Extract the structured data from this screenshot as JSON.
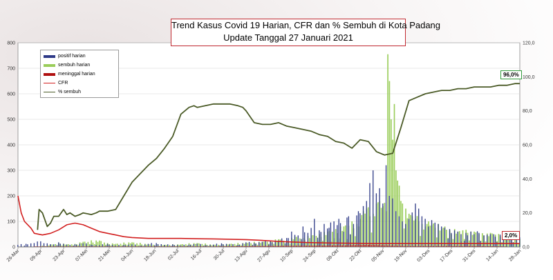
{
  "title": {
    "line1": "Trend Kasus Covid 19 Harian, CFR dan % Sembuh di Kota Padang",
    "line2": "Update Tanggal 27 Januari 2021"
  },
  "badges": {
    "recovery_last": "96,0%",
    "cfr_last": "2,0%"
  },
  "colors": {
    "positif": "#2e3a87",
    "sembuh": "#9acd5a",
    "meninggal": "#b01010",
    "cfr": "#d21f1f",
    "pct_sembuh": "#4a5a26"
  },
  "chart_data": {
    "type": "bar",
    "xlabels": [
      "26-Mar",
      "09-Apr",
      "23-Apr",
      "07-Mei",
      "21-Mei",
      "04-Jun",
      "18-Jun",
      "02-Jul",
      "16-Jul",
      "30-Jul",
      "13-Agu",
      "27-Agu",
      "10-Sep",
      "24-Sep",
      "08-Okt",
      "22-Okt",
      "05-Nov",
      "19-Nov",
      "03-Des",
      "17-Des",
      "31-Des",
      "14-Jan",
      "28-Jan"
    ],
    "ylim_left": [
      0,
      800
    ],
    "yticks_left": [
      "0",
      "100",
      "200",
      "300",
      "400",
      "500",
      "600",
      "700",
      "800"
    ],
    "ylim_right": [
      0,
      120
    ],
    "yticks_right": [
      "0,0",
      "20,0",
      "40,0",
      "60,0",
      "80,0",
      "100,0",
      "120,0"
    ],
    "legend": [
      {
        "name": "positif harian",
        "kind": "bar"
      },
      {
        "name": "sembuh harian",
        "kind": "bar"
      },
      {
        "name": "meninggal harian",
        "kind": "bar"
      },
      {
        "name": "CFR",
        "kind": "line"
      },
      {
        "name": "% sembuh",
        "kind": "line"
      }
    ],
    "series": [
      {
        "name": "positif harian",
        "points": [
          [
            0,
            8
          ],
          [
            5,
            12
          ],
          [
            10,
            15
          ],
          [
            14,
            22
          ],
          [
            18,
            14
          ],
          [
            22,
            10
          ],
          [
            25,
            18
          ],
          [
            28,
            12
          ],
          [
            32,
            8
          ],
          [
            35,
            10
          ],
          [
            40,
            14
          ],
          [
            45,
            9
          ],
          [
            50,
            7
          ],
          [
            55,
            12
          ],
          [
            60,
            6
          ],
          [
            65,
            8
          ],
          [
            70,
            10
          ],
          [
            75,
            5
          ],
          [
            80,
            12
          ],
          [
            85,
            15
          ],
          [
            90,
            8
          ],
          [
            95,
            10
          ],
          [
            100,
            6
          ],
          [
            105,
            9
          ],
          [
            110,
            12
          ],
          [
            115,
            7
          ],
          [
            120,
            9
          ],
          [
            125,
            14
          ],
          [
            130,
            10
          ],
          [
            135,
            8
          ],
          [
            140,
            18
          ],
          [
            145,
            15
          ],
          [
            150,
            20
          ],
          [
            155,
            22
          ],
          [
            160,
            25
          ],
          [
            165,
            35
          ],
          [
            168,
            60
          ],
          [
            172,
            45
          ],
          [
            175,
            80
          ],
          [
            178,
            55
          ],
          [
            182,
            110
          ],
          [
            185,
            65
          ],
          [
            188,
            90
          ],
          [
            191,
            75
          ],
          [
            194,
            100
          ],
          [
            197,
            110
          ],
          [
            200,
            60
          ],
          [
            203,
            120
          ],
          [
            206,
            90
          ],
          [
            209,
            140
          ],
          [
            212,
            160
          ],
          [
            214,
            180
          ],
          [
            216,
            250
          ],
          [
            218,
            300
          ],
          [
            220,
            210
          ],
          [
            222,
            230
          ],
          [
            224,
            170
          ],
          [
            226,
            320
          ],
          [
            228,
            200
          ],
          [
            230,
            190
          ],
          [
            232,
            140
          ],
          [
            234,
            120
          ],
          [
            236,
            100
          ],
          [
            238,
            90
          ],
          [
            240,
            110
          ],
          [
            242,
            135
          ],
          [
            244,
            170
          ],
          [
            246,
            150
          ],
          [
            248,
            120
          ],
          [
            250,
            110
          ],
          [
            252,
            80
          ],
          [
            254,
            105
          ],
          [
            256,
            95
          ],
          [
            258,
            90
          ],
          [
            260,
            80
          ],
          [
            262,
            75
          ],
          [
            265,
            70
          ],
          [
            268,
            65
          ],
          [
            270,
            60
          ],
          [
            272,
            50
          ],
          [
            275,
            55
          ],
          [
            278,
            60
          ],
          [
            280,
            50
          ],
          [
            283,
            55
          ],
          [
            286,
            45
          ],
          [
            290,
            50
          ],
          [
            293,
            40
          ],
          [
            296,
            48
          ],
          [
            300,
            45
          ],
          [
            303,
            40
          ],
          [
            306,
            42
          ],
          [
            308,
            38
          ]
        ]
      },
      {
        "name": "sembuh harian",
        "points": [
          [
            15,
            5
          ],
          [
            20,
            8
          ],
          [
            25,
            15
          ],
          [
            30,
            10
          ],
          [
            35,
            12
          ],
          [
            40,
            20
          ],
          [
            50,
            25
          ],
          [
            55,
            15
          ],
          [
            60,
            12
          ],
          [
            70,
            18
          ],
          [
            80,
            10
          ],
          [
            90,
            8
          ],
          [
            100,
            10
          ],
          [
            110,
            15
          ],
          [
            120,
            8
          ],
          [
            130,
            12
          ],
          [
            140,
            15
          ],
          [
            150,
            20
          ],
          [
            155,
            25
          ],
          [
            160,
            30
          ],
          [
            165,
            25
          ],
          [
            170,
            40
          ],
          [
            175,
            35
          ],
          [
            180,
            45
          ],
          [
            185,
            50
          ],
          [
            190,
            60
          ],
          [
            195,
            70
          ],
          [
            200,
            80
          ],
          [
            205,
            100
          ],
          [
            208,
            90
          ],
          [
            210,
            110
          ],
          [
            212,
            140
          ],
          [
            214,
            150
          ],
          [
            216,
            120
          ],
          [
            218,
            130
          ],
          [
            220,
            170
          ],
          [
            222,
            180
          ],
          [
            224,
            160
          ],
          [
            226,
            140
          ],
          [
            227,
            755
          ],
          [
            228,
            650
          ],
          [
            229,
            500
          ],
          [
            230,
            420
          ],
          [
            231,
            560
          ],
          [
            232,
            300
          ],
          [
            233,
            260
          ],
          [
            234,
            240
          ],
          [
            235,
            180
          ],
          [
            236,
            170
          ],
          [
            238,
            150
          ],
          [
            240,
            130
          ],
          [
            242,
            120
          ],
          [
            244,
            110
          ],
          [
            246,
            100
          ],
          [
            248,
            90
          ],
          [
            250,
            80
          ],
          [
            252,
            100
          ],
          [
            254,
            85
          ],
          [
            256,
            75
          ],
          [
            258,
            90
          ],
          [
            260,
            70
          ],
          [
            262,
            80
          ],
          [
            265,
            65
          ],
          [
            268,
            70
          ],
          [
            270,
            60
          ],
          [
            273,
            65
          ],
          [
            276,
            55
          ],
          [
            280,
            60
          ],
          [
            283,
            50
          ],
          [
            286,
            45
          ],
          [
            290,
            55
          ],
          [
            293,
            48
          ],
          [
            296,
            42
          ],
          [
            300,
            40
          ],
          [
            303,
            38
          ],
          [
            306,
            35
          ],
          [
            308,
            32
          ]
        ]
      },
      {
        "name": "meninggal harian",
        "points": [
          [
            10,
            1
          ],
          [
            40,
            1
          ],
          [
            80,
            1
          ],
          [
            120,
            1
          ],
          [
            160,
            2
          ],
          [
            200,
            3
          ],
          [
            215,
            4
          ],
          [
            225,
            3
          ],
          [
            240,
            2
          ],
          [
            260,
            2
          ],
          [
            280,
            2
          ],
          [
            300,
            1
          ]
        ]
      },
      {
        "name": "CFR",
        "points": [
          [
            0,
            30
          ],
          [
            2,
            20
          ],
          [
            4,
            15
          ],
          [
            8,
            11
          ],
          [
            10,
            8
          ],
          [
            15,
            7
          ],
          [
            20,
            8
          ],
          [
            25,
            10
          ],
          [
            30,
            13
          ],
          [
            35,
            14
          ],
          [
            40,
            13
          ],
          [
            45,
            11
          ],
          [
            50,
            9
          ],
          [
            55,
            8
          ],
          [
            60,
            7
          ],
          [
            65,
            6
          ],
          [
            70,
            5.5
          ],
          [
            80,
            5
          ],
          [
            90,
            5
          ],
          [
            100,
            5
          ],
          [
            110,
            4.8
          ],
          [
            120,
            4.7
          ],
          [
            130,
            4.5
          ],
          [
            140,
            4.3
          ],
          [
            150,
            3.8
          ],
          [
            160,
            3.2
          ],
          [
            170,
            2.8
          ],
          [
            180,
            2.5
          ],
          [
            190,
            2.3
          ],
          [
            200,
            2.2
          ],
          [
            210,
            2.1
          ],
          [
            220,
            2
          ],
          [
            230,
            2
          ],
          [
            240,
            2
          ],
          [
            250,
            2
          ],
          [
            260,
            2
          ],
          [
            270,
            2
          ],
          [
            280,
            2
          ],
          [
            290,
            2
          ],
          [
            300,
            2
          ],
          [
            308,
            2
          ]
        ]
      },
      {
        "name": "% sembuh",
        "points": [
          [
            12,
            10
          ],
          [
            13,
            22
          ],
          [
            15,
            20
          ],
          [
            18,
            12
          ],
          [
            20,
            14
          ],
          [
            22,
            18
          ],
          [
            25,
            18
          ],
          [
            28,
            22
          ],
          [
            30,
            19
          ],
          [
            32,
            20
          ],
          [
            35,
            18
          ],
          [
            38,
            19
          ],
          [
            40,
            20
          ],
          [
            45,
            19
          ],
          [
            48,
            20
          ],
          [
            50,
            21
          ],
          [
            55,
            21
          ],
          [
            60,
            22
          ],
          [
            65,
            30
          ],
          [
            70,
            38
          ],
          [
            75,
            43
          ],
          [
            80,
            48
          ],
          [
            85,
            52
          ],
          [
            90,
            58
          ],
          [
            95,
            65
          ],
          [
            100,
            78
          ],
          [
            105,
            82
          ],
          [
            108,
            83
          ],
          [
            110,
            82
          ],
          [
            115,
            83
          ],
          [
            120,
            84
          ],
          [
            125,
            84
          ],
          [
            130,
            84
          ],
          [
            135,
            83
          ],
          [
            138,
            82
          ],
          [
            140,
            80
          ],
          [
            145,
            73
          ],
          [
            150,
            72
          ],
          [
            155,
            72
          ],
          [
            160,
            73
          ],
          [
            165,
            71
          ],
          [
            170,
            70
          ],
          [
            175,
            69
          ],
          [
            180,
            68
          ],
          [
            185,
            66
          ],
          [
            190,
            65
          ],
          [
            195,
            62
          ],
          [
            200,
            61
          ],
          [
            205,
            58
          ],
          [
            210,
            63
          ],
          [
            215,
            62
          ],
          [
            220,
            56
          ],
          [
            225,
            54
          ],
          [
            230,
            55
          ],
          [
            235,
            70
          ],
          [
            240,
            86
          ],
          [
            245,
            88
          ],
          [
            250,
            90
          ],
          [
            255,
            91
          ],
          [
            260,
            92
          ],
          [
            265,
            92
          ],
          [
            270,
            93
          ],
          [
            275,
            93
          ],
          [
            280,
            94
          ],
          [
            285,
            94
          ],
          [
            290,
            94
          ],
          [
            295,
            95
          ],
          [
            300,
            95
          ],
          [
            305,
            96
          ],
          [
            308,
            96
          ]
        ]
      }
    ]
  }
}
